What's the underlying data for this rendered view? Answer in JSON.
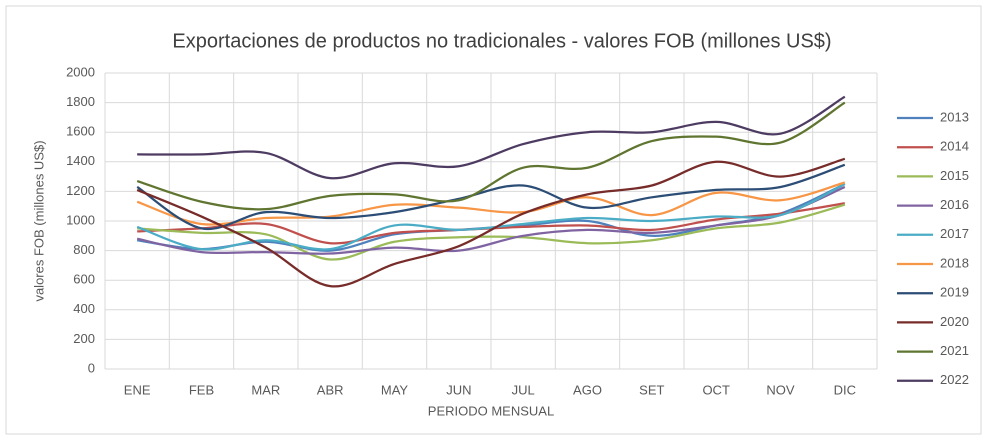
{
  "chart_data": {
    "type": "line",
    "title": "Exportaciones de productos no tradicionales - valores FOB (millones US$)",
    "x_label": "PERIODO MENSUAL",
    "y_label": "valores FOB (millones US$)",
    "categories": [
      "ENE",
      "FEB",
      "MAR",
      "ABR",
      "MAY",
      "JUN",
      "JUL",
      "AGO",
      "SET",
      "OCT",
      "NOV",
      "DIC"
    ],
    "ylim": [
      0,
      2000
    ],
    "yticks": [
      0,
      200,
      400,
      600,
      800,
      1000,
      1200,
      1400,
      1600,
      1800,
      2000
    ],
    "grid": true,
    "smooth": true,
    "legend": "right",
    "series": [
      {
        "name": "2013",
        "color": "#4f81bd",
        "values": [
          870,
          810,
          860,
          800,
          910,
          940,
          970,
          1000,
          900,
          970,
          1050,
          1250
        ]
      },
      {
        "name": "2014",
        "color": "#c0504d",
        "values": [
          930,
          950,
          980,
          850,
          920,
          940,
          960,
          970,
          940,
          1010,
          1050,
          1120
        ]
      },
      {
        "name": "2015",
        "color": "#9bbb59",
        "values": [
          950,
          920,
          910,
          740,
          860,
          890,
          890,
          850,
          870,
          950,
          990,
          1110
        ]
      },
      {
        "name": "2016",
        "color": "#8064a2",
        "values": [
          880,
          790,
          790,
          780,
          820,
          800,
          900,
          940,
          920,
          970,
          1040,
          1230
        ]
      },
      {
        "name": "2017",
        "color": "#4bacc6",
        "values": [
          960,
          810,
          870,
          810,
          970,
          940,
          980,
          1020,
          1000,
          1030,
          1040,
          1250
        ]
      },
      {
        "name": "2018",
        "color": "#f79646",
        "values": [
          1130,
          980,
          1020,
          1030,
          1110,
          1090,
          1060,
          1160,
          1040,
          1190,
          1140,
          1260
        ]
      },
      {
        "name": "2019",
        "color": "#2c4d75",
        "values": [
          1230,
          950,
          1060,
          1020,
          1060,
          1150,
          1240,
          1090,
          1160,
          1210,
          1230,
          1380
        ]
      },
      {
        "name": "2020",
        "color": "#772c2a",
        "values": [
          1210,
          1030,
          820,
          560,
          710,
          830,
          1050,
          1180,
          1240,
          1400,
          1300,
          1420
        ]
      },
      {
        "name": "2021",
        "color": "#5f7530",
        "values": [
          1270,
          1130,
          1080,
          1170,
          1180,
          1140,
          1360,
          1360,
          1540,
          1570,
          1530,
          1800
        ]
      },
      {
        "name": "2022",
        "color": "#4d3b62",
        "values": [
          1450,
          1450,
          1460,
          1290,
          1390,
          1370,
          1520,
          1600,
          1600,
          1670,
          1590,
          1840
        ]
      }
    ]
  }
}
